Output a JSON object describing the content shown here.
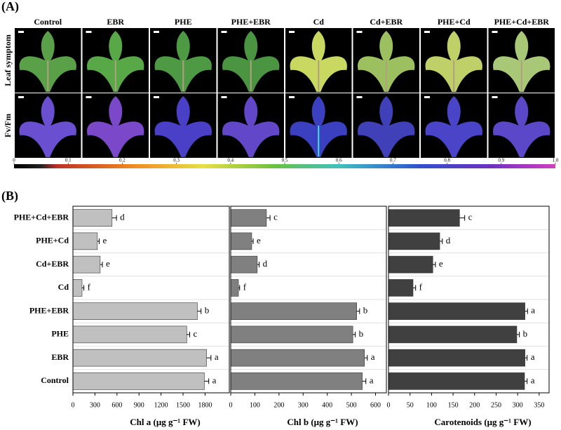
{
  "panel_a": {
    "label": "(A)",
    "columns": [
      "Control",
      "EBR",
      "PHE",
      "PHE+EBR",
      "Cd",
      "Cd+EBR",
      "PHE+Cd",
      "PHE+Cd+EBR"
    ],
    "rows": [
      "Leaf symptom",
      "Fv/Fm"
    ],
    "colorbar_ticks": [
      0,
      0.1,
      0.2,
      0.3,
      0.4,
      0.5,
      0.6,
      0.7,
      0.8,
      0.9,
      {
        "value": 1,
        "label": "1.0"
      }
    ]
  },
  "panel_b_label": "(B)",
  "chart_data": [
    {
      "type": "bar",
      "orientation": "horizontal",
      "xlabel": "Chl a (μg g⁻¹ FW)",
      "categories": [
        "Control",
        "EBR",
        "PHE",
        "PHE+EBR",
        "Cd",
        "Cd+EBR",
        "PHE+Cd",
        "PHE+Cd+EBR"
      ],
      "values": [
        1790,
        1820,
        1550,
        1695,
        124,
        371,
        333,
        533
      ],
      "errors": [
        60,
        60,
        40,
        50,
        25,
        30,
        25,
        60
      ],
      "letters": [
        "a",
        "a",
        "c",
        "b",
        "f",
        "e",
        "e",
        "d"
      ],
      "color": "#c0c0c0",
      "xlim": [
        0,
        2130
      ],
      "xticks": [
        0,
        300,
        600,
        900,
        1200,
        1500,
        1800
      ],
      "grid": true
    },
    {
      "type": "bar",
      "orientation": "horizontal",
      "xlabel": "Chl b (μg g⁻¹ FW)",
      "values": [
        545,
        554,
        506,
        522,
        32,
        110,
        87,
        148
      ],
      "errors": [
        15,
        12,
        10,
        12,
        5,
        8,
        6,
        15
      ],
      "letters": [
        "a",
        "a",
        "b",
        "b",
        "f",
        "d",
        "e",
        "c"
      ],
      "color": "#808080",
      "xlim": [
        0,
        645
      ],
      "xticks": [
        0,
        100,
        200,
        300,
        400,
        500,
        600
      ],
      "grid": true
    },
    {
      "type": "bar",
      "orientation": "horizontal",
      "xlabel": "Carotenoids (μg g⁻¹ FW)",
      "values": [
        316,
        317,
        298,
        317,
        57,
        103,
        119,
        165
      ],
      "errors": [
        6,
        5,
        6,
        6,
        6,
        6,
        6,
        12
      ],
      "letters": [
        "a",
        "a",
        "b",
        "a",
        "f",
        "e",
        "d",
        "c"
      ],
      "color": "#404040",
      "xlim": [
        0,
        373
      ],
      "xticks": [
        0,
        50,
        100,
        150,
        200,
        250,
        300,
        350
      ],
      "grid": true
    }
  ]
}
